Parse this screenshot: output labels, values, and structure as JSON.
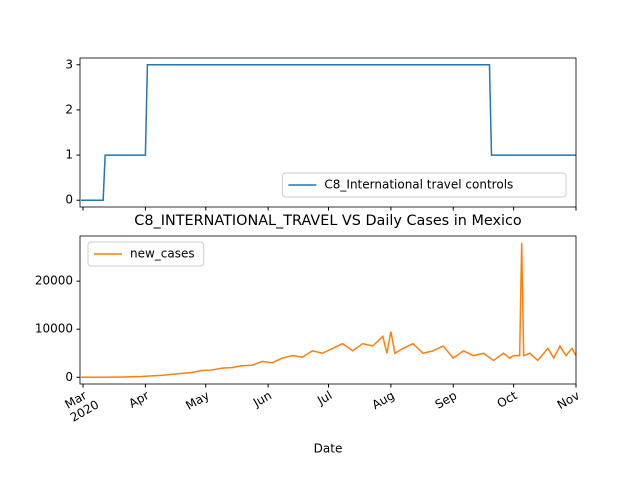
{
  "chart_data": [
    {
      "type": "line",
      "x": [
        60,
        71,
        72,
        92,
        93,
        263,
        264,
        306
      ],
      "xlim": [
        59.5,
        306
      ],
      "series": [
        {
          "name": "C8_International travel controls",
          "color": "#1f77b4",
          "values": [
            0,
            0,
            1,
            1,
            3,
            3,
            1,
            1
          ]
        }
      ],
      "ylim": [
        -0.15,
        3.15
      ],
      "yticks": [
        0,
        1,
        2,
        3
      ],
      "legend": "lower right"
    },
    {
      "type": "line",
      "title": "C8_INTERNATIONAL_TRAVEL VS Daily Cases in Mexico",
      "xlabel": "Date",
      "x": [
        60,
        65,
        70,
        75,
        80,
        85,
        90,
        95,
        100,
        105,
        110,
        115,
        120,
        125,
        130,
        135,
        140,
        145,
        150,
        155,
        160,
        165,
        170,
        175,
        180,
        185,
        190,
        195,
        200,
        205,
        210,
        212,
        214,
        216,
        220,
        225,
        230,
        235,
        240,
        245,
        250,
        255,
        260,
        265,
        270,
        273,
        275,
        278,
        279,
        280,
        283,
        287,
        292,
        295,
        298,
        301,
        304,
        306
      ],
      "xlim": [
        59.5,
        306
      ],
      "xticks": [
        {
          "value": 61,
          "label": "Mar",
          "sublabel": "2020"
        },
        {
          "value": 92,
          "label": "Apr"
        },
        {
          "value": 122,
          "label": "May"
        },
        {
          "value": 153,
          "label": "Jun"
        },
        {
          "value": 183,
          "label": "Jul"
        },
        {
          "value": 214,
          "label": "Aug"
        },
        {
          "value": 245,
          "label": "Sep"
        },
        {
          "value": 275,
          "label": "Oct"
        },
        {
          "value": 306,
          "label": "Nov"
        }
      ],
      "series": [
        {
          "name": "new_cases",
          "color": "#ff7f0e",
          "values": [
            0,
            5,
            10,
            30,
            50,
            100,
            150,
            300,
            400,
            600,
            800,
            1000,
            1400,
            1500,
            1900,
            2000,
            2400,
            2500,
            3300,
            3000,
            4000,
            4500,
            4200,
            5500,
            5000,
            6000,
            7000,
            5500,
            7000,
            6500,
            8500,
            5000,
            9500,
            5000,
            6000,
            7000,
            5000,
            5500,
            6500,
            4000,
            5500,
            4500,
            5000,
            3500,
            5000,
            4000,
            4500,
            4500,
            28000,
            4500,
            5000,
            3500,
            6000,
            4000,
            6500,
            4500,
            6000,
            4500
          ]
        }
      ],
      "ylim": [
        -1400,
        29400
      ],
      "yticks": [
        0,
        10000,
        20000
      ],
      "legend": "upper left"
    }
  ]
}
